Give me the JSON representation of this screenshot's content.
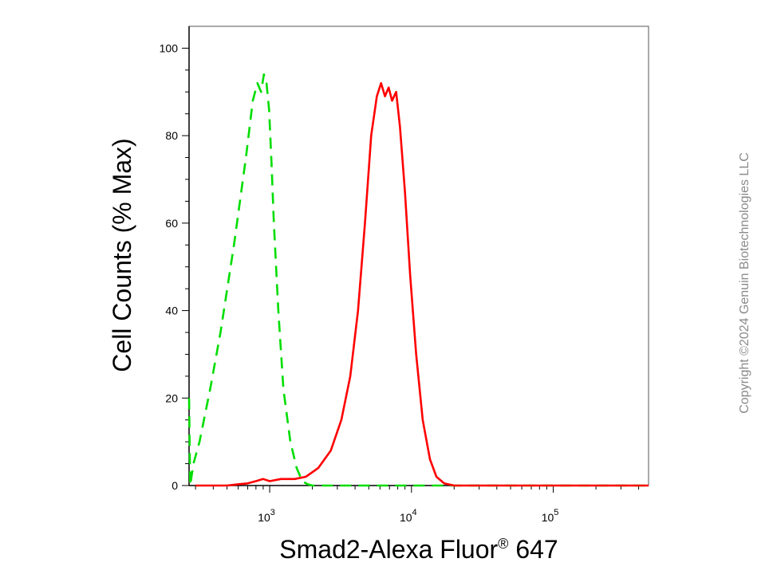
{
  "chart_data": {
    "type": "line",
    "title": "",
    "ylabel": "Cell Counts (% Max)",
    "xlabel_main": "Smad2-Alexa Fluor",
    "xlabel_sup": "®",
    "xlabel_tail": " 647",
    "x_scale": "log",
    "xlim": [
      270,
      470000
    ],
    "ylim": [
      0,
      105
    ],
    "y_ticks": [
      {
        "value": 0,
        "label": "0"
      },
      {
        "value": 20,
        "label": "20"
      },
      {
        "value": 40,
        "label": "40"
      },
      {
        "value": 60,
        "label": "60"
      },
      {
        "value": 80,
        "label": "80"
      },
      {
        "value": 100,
        "label": "100"
      }
    ],
    "x_ticks": [
      {
        "value": 1000,
        "base": "10",
        "exp": "3"
      },
      {
        "value": 10000,
        "base": "10",
        "exp": "4"
      },
      {
        "value": 100000,
        "base": "10",
        "exp": "5"
      }
    ],
    "grid": false,
    "series": [
      {
        "color": "#00dd00",
        "dash": true,
        "x": [
          270,
          275,
          290,
          320,
          380,
          450,
          560,
          680,
          760,
          820,
          870,
          910,
          950,
          990,
          1030,
          1070,
          1150,
          1250,
          1400,
          1550,
          1700,
          1850,
          2000,
          2300,
          3000,
          5000,
          10000,
          50000,
          470000
        ],
        "y": [
          20,
          0,
          5,
          10,
          22,
          35,
          55,
          75,
          88,
          92,
          90,
          94,
          92,
          86,
          74,
          60,
          40,
          22,
          10,
          4,
          1,
          0.3,
          0,
          0,
          0,
          0,
          0,
          0,
          0
        ]
      },
      {
        "color": "#ff0000",
        "dash": false,
        "x": [
          300,
          500,
          600,
          700,
          800,
          900,
          1000,
          1200,
          1500,
          1800,
          2200,
          2700,
          3200,
          3700,
          4200,
          4700,
          5200,
          5700,
          6100,
          6500,
          6900,
          7300,
          7800,
          8300,
          9000,
          9800,
          10800,
          12000,
          13500,
          15000,
          17000,
          20000,
          25000,
          100000,
          470000
        ],
        "y": [
          0,
          0,
          0.3,
          0.5,
          1,
          1.5,
          1,
          1.5,
          1.5,
          2,
          4,
          8,
          15,
          25,
          40,
          60,
          80,
          89,
          92,
          89,
          91,
          88,
          90,
          82,
          67,
          48,
          30,
          15,
          6,
          2,
          0.5,
          0,
          0,
          0,
          0
        ]
      }
    ]
  },
  "copyright": "Copyright ©2024 Genuin Biotechnologies LLC"
}
